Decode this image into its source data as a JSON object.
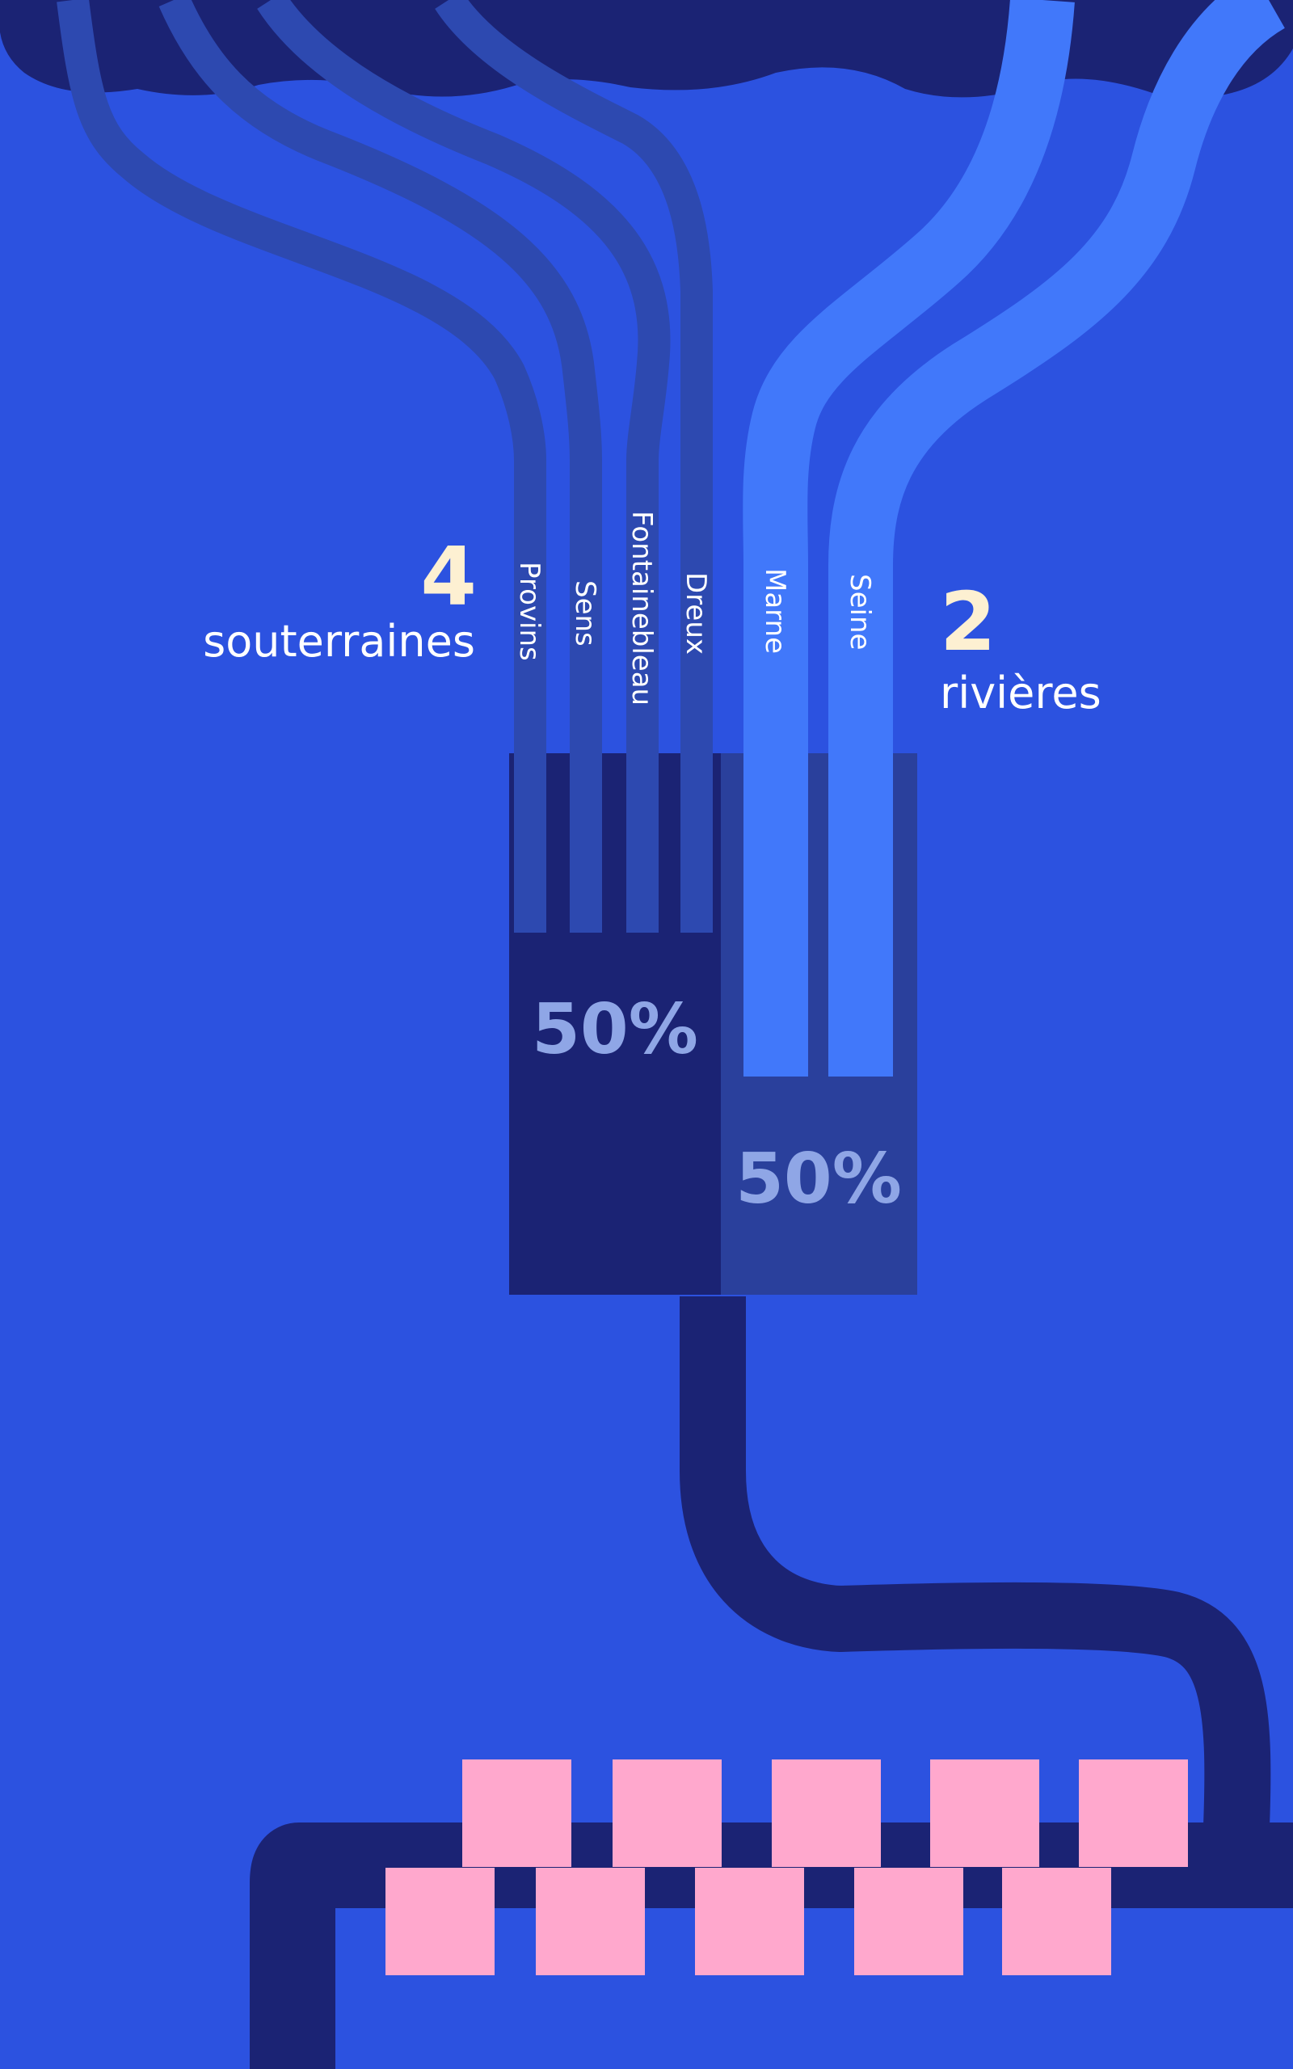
{
  "colors": {
    "background": "#2c52e0",
    "cloud": "#1b2374",
    "groundwater_pipe": "#2d49b0",
    "river_pipe": "#4178fa",
    "tank_groundwater": "#1b2374",
    "tank_river": "#2a409c",
    "pct_text": "#8fa6e6",
    "accent_number": "#fdf0d2",
    "label_text": "#ffffff",
    "building_block": "#ffa8cd",
    "main_pipe": "#1b2374"
  },
  "groundwater": {
    "count": "4",
    "label": "souterraines",
    "share": "50%",
    "sources": [
      "Provins",
      "Sens",
      "Fontainebleau",
      "Dreux"
    ]
  },
  "rivers": {
    "count": "2",
    "label": "rivières",
    "share": "50%",
    "sources": [
      "Marne",
      "Seine"
    ]
  }
}
